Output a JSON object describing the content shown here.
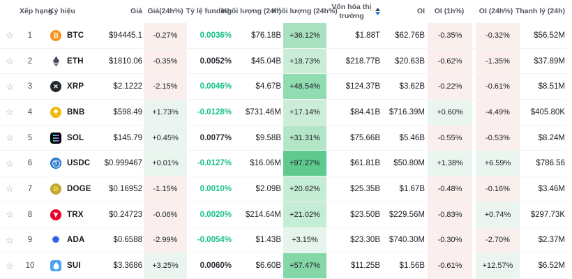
{
  "table_title": "crypto-futures-overview",
  "columns": [
    {
      "key": "star",
      "label": "",
      "align": "ac"
    },
    {
      "key": "rank",
      "label": "Xếp hạng",
      "align": "al"
    },
    {
      "key": "symbol",
      "label": "Ký hiệu",
      "align": "al"
    },
    {
      "key": "price",
      "label": "Giá",
      "align": "ar"
    },
    {
      "key": "pricechg",
      "label": "Giá(24h%)",
      "align": "ac"
    },
    {
      "key": "funding",
      "label": "Tỷ lệ funding",
      "align": "ar"
    },
    {
      "key": "vol",
      "label": "Khối lượng (24h)",
      "align": "ar"
    },
    {
      "key": "volchg",
      "label": "Khối lượng (24h%)",
      "align": "ac"
    },
    {
      "key": "mcap",
      "label": "Vốn hóa thị trường",
      "align": "ar",
      "sortable": true
    },
    {
      "key": "oi",
      "label": "OI",
      "align": "ar"
    },
    {
      "key": "oi1h",
      "label": "OI (1h%)",
      "align": "ac"
    },
    {
      "key": "oi24h",
      "label": "OI (24h%)",
      "align": "ac"
    },
    {
      "key": "liq",
      "label": "Thanh lý (24h)",
      "align": "ar"
    }
  ],
  "colors": {
    "pos_bg": "#e9f5ee",
    "neg_bg": "#faefec",
    "funding_green": "#18c284",
    "funding_dark": "#2b2f36",
    "header_text": "#51565f",
    "row_border": "#f2f3f5",
    "sort_arrow_up": "#3d4a57",
    "sort_arrow_down": "#1e78d7"
  },
  "coins": {
    "BTC": {
      "brand": "#f7931a",
      "glyph": "₿",
      "shape": "circle"
    },
    "ETH": {
      "brand": "#454a54",
      "glyph": "eth-diamond",
      "shape": "plain"
    },
    "XRP": {
      "brand": "#23292f",
      "glyph": "✕",
      "shape": "circle"
    },
    "BNB": {
      "brand": "#f0b90b",
      "glyph": "❖",
      "shape": "circle"
    },
    "SOL": {
      "brand": "#000000",
      "glyph": "sol-bars",
      "shape": "square"
    },
    "USDC": {
      "brand": "#2775ca",
      "glyph": "usdc-s",
      "shape": "circle"
    },
    "DOGE": {
      "brand": "#c3a634",
      "glyph": "Đ",
      "glyph_color": "#f7e94a",
      "shape": "circle"
    },
    "TRX": {
      "brand": "#eb0029",
      "glyph": "trx-tri",
      "shape": "circle"
    },
    "ADA": {
      "brand": "#2f5bea",
      "glyph": "✺",
      "shape": "plain"
    },
    "SUI": {
      "brand": "#4ba3f5",
      "glyph": "sui-drop",
      "shape": "square"
    }
  },
  "rows": [
    {
      "rank": "1",
      "symbol": "BTC",
      "price": "$94445.1",
      "price_chg": "-0.27%",
      "funding": "0.0036%",
      "funding_color": "green",
      "volume": "$76.18B",
      "volume_chg": "+36.12%",
      "volume_chg_bg": "#a9e2c0",
      "mcap": "$1.88T",
      "oi": "$62.76B",
      "oi_1h": "-0.35%",
      "oi_24h": "-0.32%",
      "liq": "$56.52M"
    },
    {
      "rank": "2",
      "symbol": "ETH",
      "price": "$1810.06",
      "price_chg": "-0.35%",
      "funding": "0.0052%",
      "funding_color": "dark",
      "volume": "$45.04B",
      "volume_chg": "+18.73%",
      "volume_chg_bg": "#c9edd7",
      "mcap": "$218.77B",
      "oi": "$20.63B",
      "oi_1h": "-0.62%",
      "oi_24h": "-1.35%",
      "liq": "$37.89M"
    },
    {
      "rank": "3",
      "symbol": "XRP",
      "price": "$2.1222",
      "price_chg": "-2.15%",
      "funding": "0.0046%",
      "funding_color": "green",
      "volume": "$4.67B",
      "volume_chg": "+48.54%",
      "volume_chg_bg": "#92dcb1",
      "mcap": "$124.37B",
      "oi": "$3.62B",
      "oi_1h": "-0.22%",
      "oi_24h": "-0.61%",
      "liq": "$8.51M"
    },
    {
      "rank": "4",
      "symbol": "BNB",
      "price": "$598.49",
      "price_chg": "+1.73%",
      "funding": "-0.0128%",
      "funding_color": "green",
      "volume": "$731.46M",
      "volume_chg": "+17.14%",
      "volume_chg_bg": "#cceed9",
      "mcap": "$84.41B",
      "oi": "$716.39M",
      "oi_1h": "+0.60%",
      "oi_24h": "-4.49%",
      "liq": "$405.80K"
    },
    {
      "rank": "5",
      "symbol": "SOL",
      "price": "$145.79",
      "price_chg": "+0.45%",
      "funding": "0.0077%",
      "funding_color": "dark",
      "volume": "$9.58B",
      "volume_chg": "+31.31%",
      "volume_chg_bg": "#b3e6c6",
      "mcap": "$75.66B",
      "oi": "$5.46B",
      "oi_1h": "-0.55%",
      "oi_24h": "-0.53%",
      "liq": "$8.24M"
    },
    {
      "rank": "6",
      "symbol": "USDC",
      "price": "$0.999467",
      "price_chg": "+0.01%",
      "funding": "-0.0127%",
      "funding_color": "green",
      "volume": "$16.06M",
      "volume_chg": "+97.27%",
      "volume_chg_bg": "#5fca8e",
      "mcap": "$61.81B",
      "oi": "$50.80M",
      "oi_1h": "+1.38%",
      "oi_24h": "+6.59%",
      "liq": "$786.56"
    },
    {
      "rank": "7",
      "symbol": "DOGE",
      "price": "$0.16952",
      "price_chg": "-1.15%",
      "funding": "0.0010%",
      "funding_color": "green",
      "volume": "$2.09B",
      "volume_chg": "+20.62%",
      "volume_chg_bg": "#c5ecd4",
      "mcap": "$25.35B",
      "oi": "$1.67B",
      "oi_1h": "-0.48%",
      "oi_24h": "-0.16%",
      "liq": "$3.46M"
    },
    {
      "rank": "8",
      "symbol": "TRX",
      "price": "$0.24723",
      "price_chg": "-0.06%",
      "funding": "0.0020%",
      "funding_color": "green",
      "volume": "$214.64M",
      "volume_chg": "+21.02%",
      "volume_chg_bg": "#c5ecd4",
      "mcap": "$23.50B",
      "oi": "$229.56M",
      "oi_1h": "-0.83%",
      "oi_24h": "+0.74%",
      "liq": "$297.73K"
    },
    {
      "rank": "9",
      "symbol": "ADA",
      "price": "$0.6588",
      "price_chg": "-2.99%",
      "funding": "-0.0054%",
      "funding_color": "green",
      "volume": "$1.43B",
      "volume_chg": "+3.15%",
      "volume_chg_bg": "#e6f5eb",
      "mcap": "$23.30B",
      "oi": "$740.30M",
      "oi_1h": "-0.30%",
      "oi_24h": "-2.70%",
      "liq": "$2.37M"
    },
    {
      "rank": "10",
      "symbol": "SUI",
      "price": "$3.3686",
      "price_chg": "+3.25%",
      "funding": "0.0060%",
      "funding_color": "dark",
      "volume": "$6.60B",
      "volume_chg": "+57.47%",
      "volume_chg_bg": "#85d7a7",
      "mcap": "$11.25B",
      "oi": "$1.56B",
      "oi_1h": "-0.61%",
      "oi_24h": "+12.57%",
      "liq": "$6.52M"
    }
  ],
  "star_glyph": "☆"
}
